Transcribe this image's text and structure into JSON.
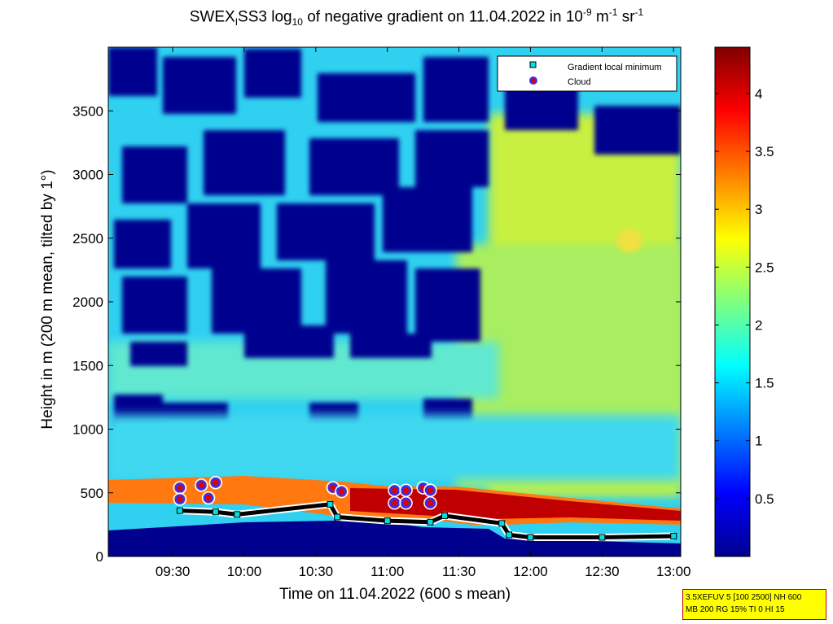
{
  "chart_data": {
    "type": "heatmap",
    "title_parts": {
      "pre": "SWEX",
      "sub1": "I",
      "mid": "SS3 log",
      "sub2": "10",
      "post": " of negative gradient on 11.04.2022 in 10",
      "sup1": "-9",
      "unit1": " m",
      "sup2": "-1",
      "unit2": " sr",
      "sup3": "-1"
    },
    "xlabel": "Time on 11.04.2022 (600 s mean)",
    "ylabel": "Height in m (200 m mean, tilted by 1°)",
    "x_ticks": [
      {
        "label": "09:30",
        "hours": 9.5
      },
      {
        "label": "10:00",
        "hours": 10.0
      },
      {
        "label": "10:30",
        "hours": 10.5
      },
      {
        "label": "11:00",
        "hours": 11.0
      },
      {
        "label": "11:30",
        "hours": 11.5
      },
      {
        "label": "12:00",
        "hours": 12.0
      },
      {
        "label": "12:30",
        "hours": 12.5
      },
      {
        "label": "13:00",
        "hours": 13.0
      }
    ],
    "xlim_hours": [
      9.05,
      13.05
    ],
    "y_ticks": [
      "0",
      "500",
      "1000",
      "1500",
      "2000",
      "2500",
      "3000",
      "3500"
    ],
    "ylim": [
      0,
      4000
    ],
    "colorbar": {
      "ticks": [
        "0.5",
        "1",
        "1.5",
        "2",
        "2.5",
        "3",
        "3.5",
        "4"
      ],
      "range": [
        0,
        4.4
      ],
      "colormap": "jet"
    },
    "legend": {
      "placement": "top-right",
      "entries": [
        {
          "label": "Gradient local minimum",
          "marker": "square",
          "color": "#00e0e0"
        },
        {
          "label": "Cloud",
          "marker": "circle",
          "color": "#dd0000"
        }
      ]
    },
    "gradient_local_minimum_line": [
      {
        "t": 9.55,
        "h": 360
      },
      {
        "t": 9.8,
        "h": 350
      },
      {
        "t": 9.95,
        "h": 330
      },
      {
        "t": 10.6,
        "h": 410
      },
      {
        "t": 10.65,
        "h": 310
      },
      {
        "t": 11.0,
        "h": 280
      },
      {
        "t": 11.3,
        "h": 270
      },
      {
        "t": 11.4,
        "h": 320
      },
      {
        "t": 11.8,
        "h": 260
      },
      {
        "t": 11.85,
        "h": 170
      },
      {
        "t": 12.0,
        "h": 150
      },
      {
        "t": 12.5,
        "h": 150
      },
      {
        "t": 13.0,
        "h": 160
      }
    ],
    "cloud_points": [
      {
        "t": 9.55,
        "h": 540
      },
      {
        "t": 9.55,
        "h": 450
      },
      {
        "t": 9.7,
        "h": 560
      },
      {
        "t": 9.75,
        "h": 460
      },
      {
        "t": 9.8,
        "h": 580
      },
      {
        "t": 10.62,
        "h": 540
      },
      {
        "t": 10.68,
        "h": 510
      },
      {
        "t": 11.05,
        "h": 520
      },
      {
        "t": 11.05,
        "h": 420
      },
      {
        "t": 11.13,
        "h": 520
      },
      {
        "t": 11.13,
        "h": 420
      },
      {
        "t": 11.25,
        "h": 540
      },
      {
        "t": 11.3,
        "h": 520
      },
      {
        "t": 11.3,
        "h": 420
      }
    ],
    "info_box": {
      "line1": "3.5XEFUV 5 [100 2500] NH 600",
      "line2": "MB 200 RG 15% TI 0 HI 15"
    }
  }
}
